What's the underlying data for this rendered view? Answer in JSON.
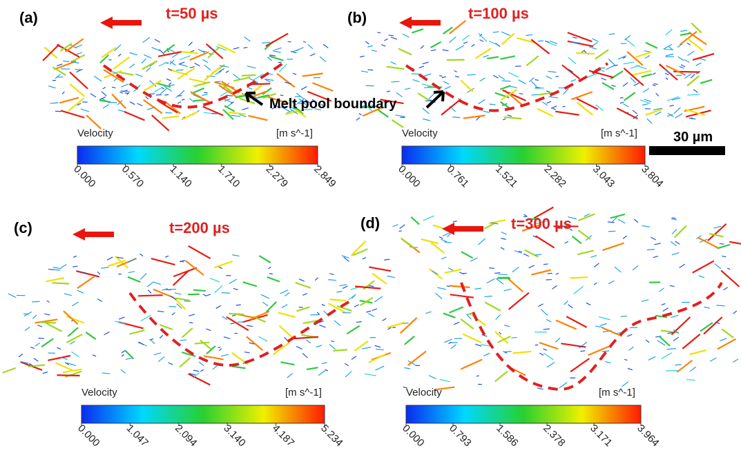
{
  "panels": [
    {
      "label": "(a)",
      "time": "t=50 µs",
      "colorbar": {
        "title": "Velocity",
        "unit": "[m s^-1]",
        "ticks": [
          "0.000",
          "0.570",
          "1.140",
          "1.710",
          "2.279",
          "2.849"
        ]
      }
    },
    {
      "label": "(b)",
      "time": "t=100 µs",
      "colorbar": {
        "title": "Velocity",
        "unit": "[m s^-1]",
        "ticks": [
          "0.000",
          "0.761",
          "1.521",
          "2.282",
          "3.043",
          "3.804"
        ]
      }
    },
    {
      "label": "(c)",
      "time": "t=200 µs",
      "colorbar": {
        "title": "Velocity",
        "unit": "[m s^-1]",
        "ticks": [
          "0.000",
          "1.047",
          "2.094",
          "3.140",
          "4.187",
          "5.234"
        ]
      }
    },
    {
      "label": "(d)",
      "time": "t=300 µs",
      "colorbar": {
        "title": "Velocity",
        "unit": "[m s^-1]",
        "ticks": [
          "0.000",
          "0.793",
          "1.586",
          "2.378",
          "3.171",
          "3.964"
        ]
      }
    }
  ],
  "annotation": "Melt pool boundary",
  "scale_bar": "30 µm"
}
